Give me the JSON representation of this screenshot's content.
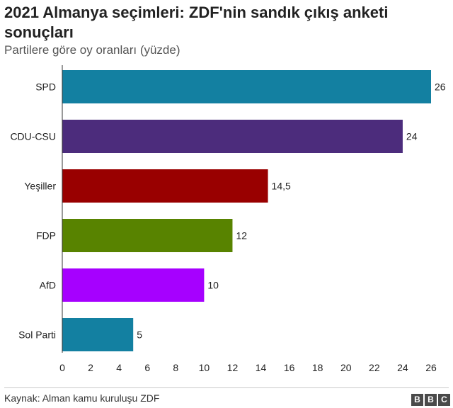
{
  "title": "2021 Almanya seçimleri: ZDF'nin sandık çıkış anketi sonuçları",
  "subtitle": "Partilere göre oy oranları (yüzde)",
  "source": "Kaynak: Alman kamu kuruluşu ZDF",
  "logo_letters": [
    "B",
    "B",
    "C"
  ],
  "chart_data": {
    "type": "bar",
    "orientation": "horizontal",
    "categories": [
      "SPD",
      "CDU-CSU",
      "Yeşiller",
      "FDP",
      "AfD",
      "Sol Parti"
    ],
    "values": [
      26,
      24,
      14.5,
      12,
      10,
      5
    ],
    "value_labels": [
      "26",
      "24",
      "14,5",
      "12",
      "10",
      "5"
    ],
    "colors": [
      "#1380A1",
      "#4C2C7C",
      "#990000",
      "#588300",
      "#A600FF",
      "#1380A1"
    ],
    "xlim": [
      0,
      26
    ],
    "xticks": [
      0,
      2,
      4,
      6,
      8,
      10,
      12,
      14,
      16,
      18,
      20,
      22,
      24,
      26
    ],
    "grid": false
  }
}
